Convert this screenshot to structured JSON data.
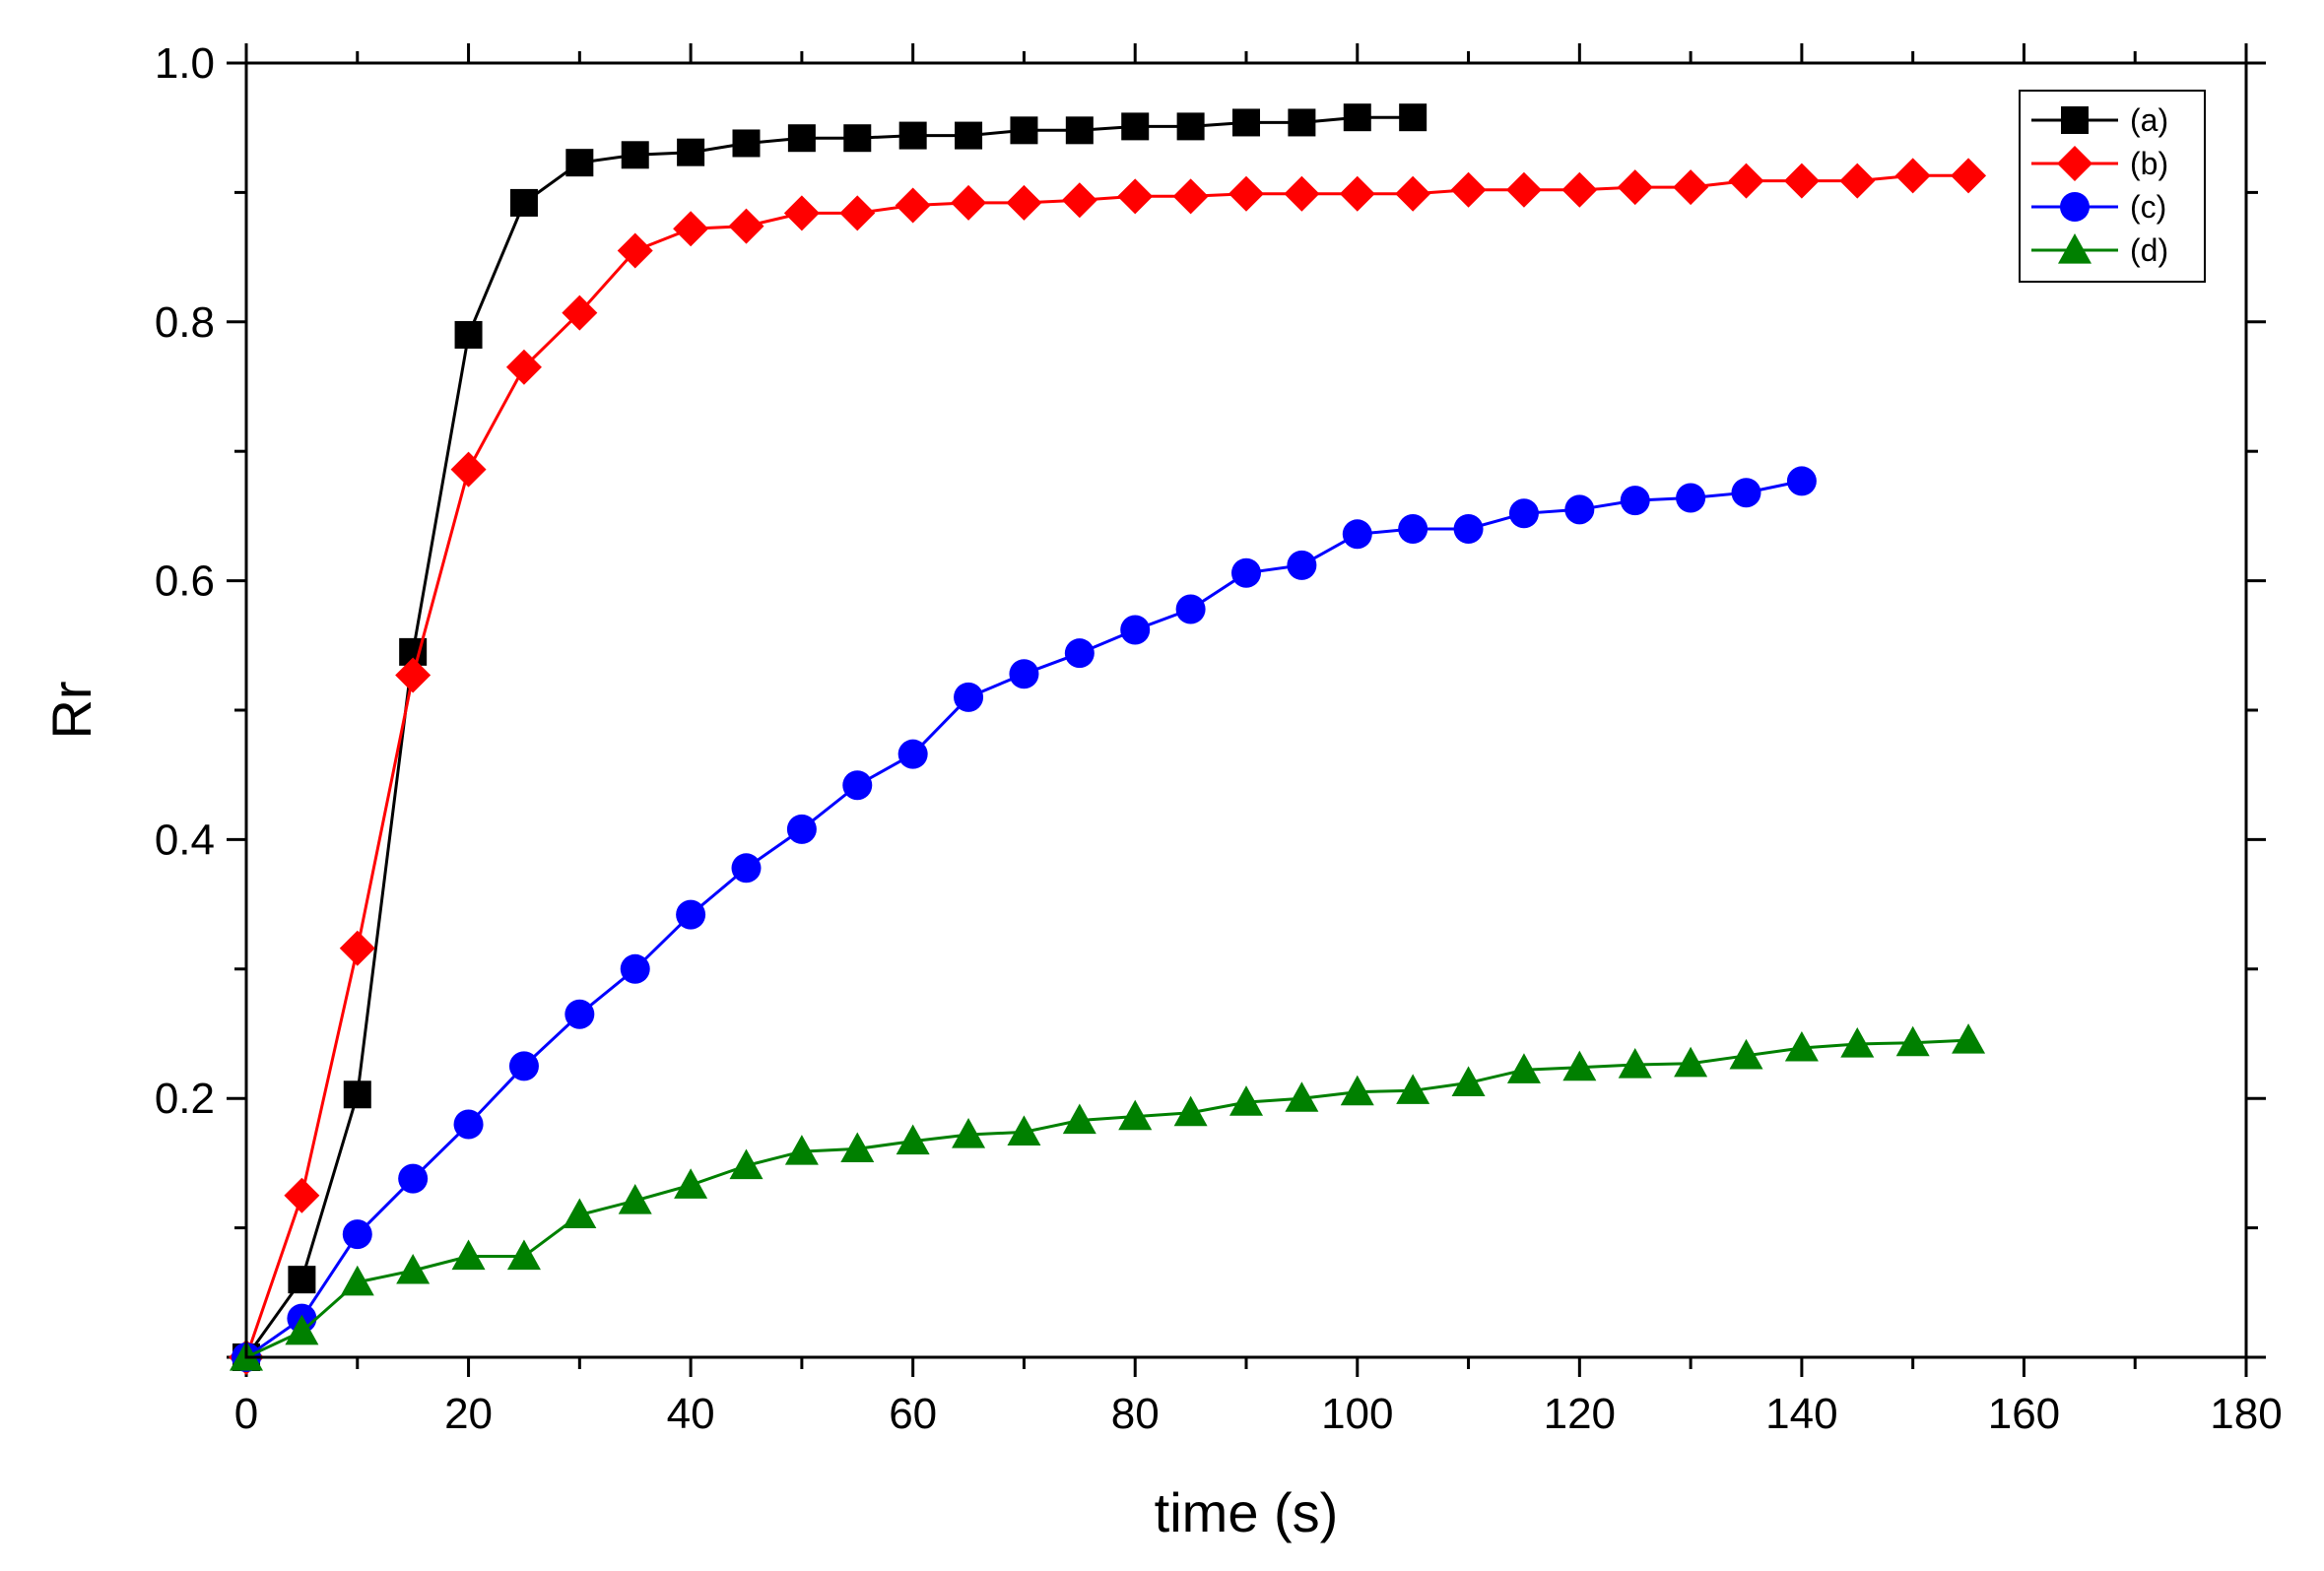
{
  "chart_data": {
    "type": "line",
    "title": "",
    "xlabel": "time (s)",
    "ylabel": "Rr",
    "xlim": [
      0,
      180
    ],
    "ylim": [
      0,
      1.0
    ],
    "xticks": [
      0,
      20,
      40,
      60,
      80,
      100,
      120,
      140,
      160,
      180
    ],
    "xtick_labels": [
      "0",
      "20",
      "40",
      "60",
      "80",
      "100",
      "120",
      "140",
      "160",
      "180"
    ],
    "yticks": [
      0.2,
      0.4,
      0.6,
      0.8,
      1.0
    ],
    "ytick_labels": [
      "0.2",
      "0.4",
      "0.6",
      "0.8",
      "1.0"
    ],
    "grid": false,
    "legend_position": "top-right",
    "series": [
      {
        "name": "(a)",
        "color": "#000000",
        "marker": "square",
        "x": [
          0,
          5,
          10,
          15,
          20,
          25,
          30,
          35,
          40,
          45,
          50,
          55,
          60,
          65,
          70,
          75,
          80,
          85,
          90,
          95,
          100,
          105
        ],
        "y": [
          0,
          0.06,
          0.203,
          0.545,
          0.79,
          0.892,
          0.923,
          0.929,
          0.931,
          0.938,
          0.942,
          0.942,
          0.944,
          0.944,
          0.948,
          0.948,
          0.951,
          0.951,
          0.954,
          0.954,
          0.958,
          0.958
        ]
      },
      {
        "name": "(b)",
        "color": "#ff0000",
        "marker": "diamond",
        "x": [
          0,
          5,
          10,
          15,
          20,
          25,
          30,
          35,
          40,
          45,
          50,
          55,
          60,
          65,
          70,
          75,
          80,
          85,
          90,
          95,
          100,
          105,
          110,
          115,
          120,
          125,
          130,
          135,
          140,
          145,
          150,
          155
        ],
        "y": [
          0,
          0.125,
          0.316,
          0.527,
          0.686,
          0.765,
          0.807,
          0.855,
          0.872,
          0.874,
          0.884,
          0.884,
          0.89,
          0.892,
          0.892,
          0.894,
          0.897,
          0.897,
          0.899,
          0.899,
          0.899,
          0.899,
          0.902,
          0.902,
          0.902,
          0.904,
          0.904,
          0.909,
          0.909,
          0.909,
          0.913,
          0.913
        ]
      },
      {
        "name": "(c)",
        "color": "#0000ff",
        "marker": "circle",
        "x": [
          0,
          5,
          10,
          15,
          20,
          25,
          30,
          35,
          40,
          45,
          50,
          55,
          60,
          65,
          70,
          75,
          80,
          85,
          90,
          95,
          100,
          105,
          110,
          115,
          120,
          125,
          130,
          135,
          140
        ],
        "y": [
          0,
          0.03,
          0.095,
          0.138,
          0.18,
          0.225,
          0.265,
          0.3,
          0.342,
          0.378,
          0.408,
          0.442,
          0.466,
          0.51,
          0.528,
          0.544,
          0.562,
          0.578,
          0.606,
          0.612,
          0.636,
          0.64,
          0.64,
          0.652,
          0.655,
          0.662,
          0.664,
          0.668,
          0.677
        ]
      },
      {
        "name": "(d)",
        "color": "#008000",
        "marker": "triangle",
        "x": [
          0,
          5,
          10,
          15,
          20,
          25,
          30,
          35,
          40,
          45,
          50,
          55,
          60,
          65,
          70,
          75,
          80,
          85,
          90,
          95,
          100,
          105,
          110,
          115,
          120,
          125,
          130,
          135,
          140,
          145,
          150,
          155
        ],
        "y": [
          0,
          0.02,
          0.058,
          0.067,
          0.078,
          0.078,
          0.11,
          0.121,
          0.133,
          0.148,
          0.159,
          0.161,
          0.167,
          0.172,
          0.174,
          0.183,
          0.186,
          0.189,
          0.197,
          0.2,
          0.205,
          0.206,
          0.212,
          0.222,
          0.224,
          0.226,
          0.227,
          0.233,
          0.239,
          0.242,
          0.243,
          0.245
        ]
      }
    ]
  }
}
